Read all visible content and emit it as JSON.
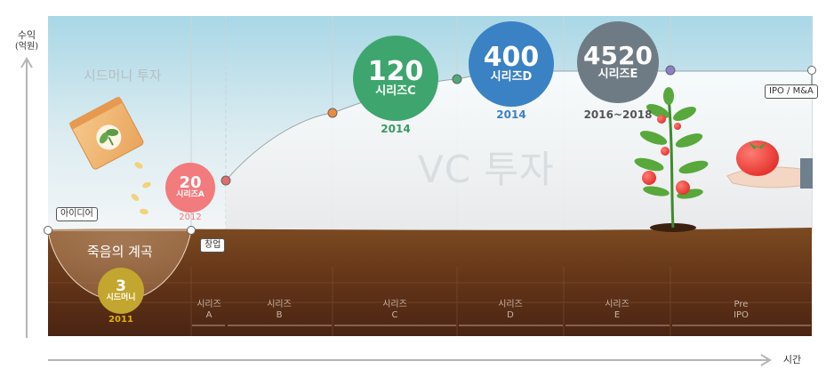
{
  "y_axis": {
    "label": "수익",
    "unit": "(억원)"
  },
  "x_axis": {
    "label": "시간"
  },
  "titles": {
    "seed": "시드머니 투자",
    "vc": "VC 투자",
    "valley": "죽음의 계곡"
  },
  "tags": {
    "idea": "아이디어",
    "founding": "창업",
    "exit": "IPO / M&A"
  },
  "rounds": [
    {
      "value": "3",
      "series": "시드머니",
      "year": "2011",
      "color": "#c3a62f",
      "year_color": "#e0b400"
    },
    {
      "value": "20",
      "series": "시리즈A",
      "year": "2012",
      "color": "#f27b7d",
      "year_color": "#f07c7c"
    },
    {
      "value": "120",
      "series": "시리즈C",
      "year": "2014",
      "color": "#3fa56f",
      "year_color": "#3a9a64"
    },
    {
      "value": "400",
      "series": "시리즈D",
      "year": "2014",
      "color": "#3b82c4",
      "year_color": "#3b82c4"
    },
    {
      "value": "4520",
      "series": "시리즈E",
      "year": "2016~2018",
      "color": "#6f7b84",
      "year_color": "#555555"
    }
  ],
  "stages": [
    {
      "line1": "시리즈",
      "line2": "A"
    },
    {
      "line1": "시리즈",
      "line2": "B"
    },
    {
      "line1": "시리즈",
      "line2": "C"
    },
    {
      "line1": "시리즈",
      "line2": "D"
    },
    {
      "line1": "시리즈",
      "line2": "E"
    },
    {
      "line1": "Pre",
      "line2": "IPO"
    }
  ],
  "colors": {
    "sky_top": "#a9d7e6",
    "sky_bottom": "#f2f6f7",
    "soil_top": "#7a4a24",
    "soil_bottom": "#4a2614",
    "dot_orange": "#ef8a3a",
    "dot_red": "#e36b6b",
    "dot_green": "#4ea878",
    "dot_purple": "#8d7fc8"
  }
}
